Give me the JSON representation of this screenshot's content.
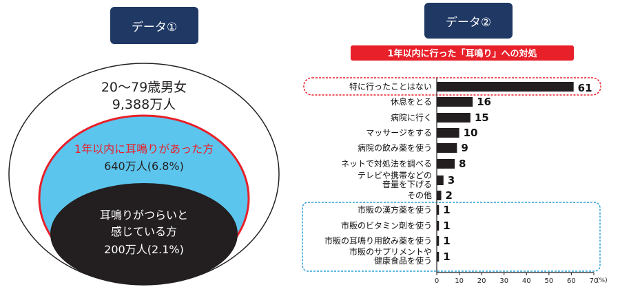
{
  "labels": {
    "data1": "データ①",
    "data2": "データ②"
  },
  "venn": {
    "outer": {
      "line1": "20～79歳男女",
      "line2": "9,388万人"
    },
    "middle": {
      "line1": "1年以内に耳鳴りがあった方",
      "line2": "640万人(6.8%)"
    },
    "inner": {
      "line1": "耳鳴りがつらいと",
      "line2": "感じている方",
      "line3": "200万人(2.1%)"
    }
  },
  "colors": {
    "label_bg": "#1f3864",
    "middle_fill": "#5cc5ee",
    "red": "#e8202a",
    "inner_fill": "#231f20",
    "bar": "#231f20",
    "dotted_blue": "#2a9fd6"
  },
  "chart_data": {
    "type": "bar",
    "orientation": "horizontal",
    "title": "1年以内に行った「耳鳴り」への対処",
    "categories": [
      "特に行ったことはない",
      "休息をとる",
      "病院に行く",
      "マッサージをする",
      "病院の飲み薬を使う",
      "ネットで対処法を調べる",
      "テレビや携帯などの\n音量を下げる",
      "その他",
      "市販の漢方薬を使う",
      "市販のビタミン剤を使う",
      "市販の耳鳴り用飲み薬を使う",
      "市販のサプリメントや\n健康食品を使う"
    ],
    "values": [
      61,
      16,
      15,
      10,
      9,
      8,
      3,
      2,
      1,
      1,
      1,
      1
    ],
    "xlim": [
      0,
      70
    ],
    "xticks": [
      0,
      10,
      20,
      30,
      40,
      50,
      60,
      70
    ],
    "unit": "(%)",
    "grid": false
  }
}
